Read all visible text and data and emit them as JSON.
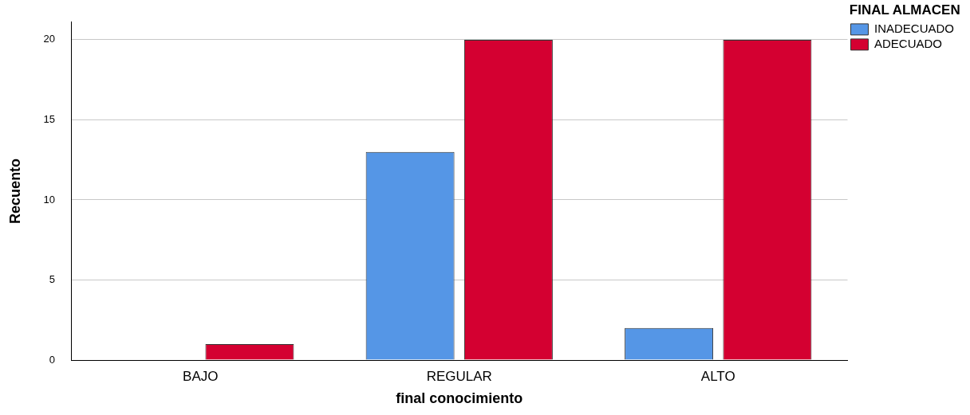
{
  "chart_data": {
    "type": "bar",
    "xlabel": "final conocimiento",
    "ylabel": "Recuento",
    "legend_title": "FINAL ALMACEN",
    "categories": [
      "BAJO",
      "REGULAR",
      "ALTO"
    ],
    "series": [
      {
        "name": "INADECUADO",
        "color": "#5596e6",
        "values": [
          0,
          13,
          2
        ]
      },
      {
        "name": "ADECUADO",
        "color": "#d40031",
        "values": [
          1,
          20,
          20
        ]
      }
    ],
    "ylim": [
      0,
      21.1
    ],
    "yticks": [
      0,
      5,
      10,
      15,
      20
    ],
    "grid": "y",
    "legend": "top right"
  }
}
